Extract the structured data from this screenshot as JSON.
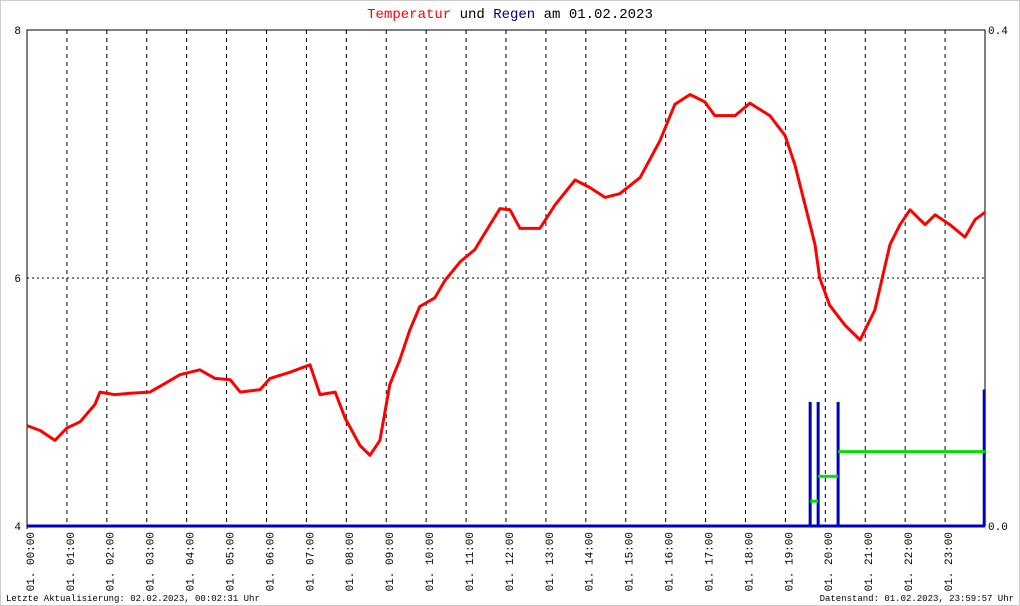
{
  "chart_data": {
    "type": "line",
    "title_parts": [
      "und",
      "am 01.02.2023"
    ],
    "xlim": [
      0,
      24
    ],
    "xticks": [
      {
        "value": 0,
        "label": "01. 00:00"
      },
      {
        "value": 1,
        "label": "01. 01:00"
      },
      {
        "value": 2,
        "label": "01. 02:00"
      },
      {
        "value": 3,
        "label": "01. 03:00"
      },
      {
        "value": 4,
        "label": "01. 04:00"
      },
      {
        "value": 5,
        "label": "01. 05:00"
      },
      {
        "value": 6,
        "label": "01. 06:00"
      },
      {
        "value": 7,
        "label": "01. 07:00"
      },
      {
        "value": 8,
        "label": "01. 08:00"
      },
      {
        "value": 9,
        "label": "01. 09:00"
      },
      {
        "value": 10,
        "label": "01. 10:00"
      },
      {
        "value": 11,
        "label": "01. 11:00"
      },
      {
        "value": 12,
        "label": "01. 12:00"
      },
      {
        "value": 13,
        "label": "01. 13:00"
      },
      {
        "value": 14,
        "label": "01. 14:00"
      },
      {
        "value": 15,
        "label": "01. 15:00"
      },
      {
        "value": 16,
        "label": "01. 16:00"
      },
      {
        "value": 17,
        "label": "01. 17:00"
      },
      {
        "value": 18,
        "label": "01. 18:00"
      },
      {
        "value": 19,
        "label": "01. 19:00"
      },
      {
        "value": 20,
        "label": "01. 20:00"
      },
      {
        "value": 21,
        "label": "01. 21:00"
      },
      {
        "value": 22,
        "label": "01. 22:00"
      },
      {
        "value": 23,
        "label": "01. 23:00"
      }
    ],
    "ylim": [
      4,
      8
    ],
    "yticks": [
      4,
      6,
      8
    ],
    "y2lim": [
      0,
      0.4
    ],
    "y2ticks": [
      {
        "value": 0,
        "label": "0.0"
      },
      {
        "value": 0.4,
        "label": "0.4"
      }
    ],
    "grid": true,
    "series": [
      {
        "name": "Temperatur",
        "color": "#ff0000",
        "x": [
          0.0,
          0.33,
          0.7,
          1.0,
          1.33,
          1.7,
          1.83,
          2.2,
          2.58,
          3.08,
          3.46,
          3.83,
          4.33,
          4.71,
          5.09,
          5.34,
          5.84,
          6.09,
          6.59,
          7.09,
          7.34,
          7.72,
          7.97,
          8.34,
          8.59,
          8.84,
          9.09,
          9.34,
          9.59,
          9.84,
          10.22,
          10.47,
          10.85,
          11.22,
          11.6,
          11.85,
          12.1,
          12.35,
          12.85,
          13.23,
          13.73,
          14.1,
          14.48,
          14.85,
          15.36,
          15.86,
          16.23,
          16.61,
          16.98,
          17.23,
          17.74,
          18.11,
          18.61,
          18.99,
          19.24,
          19.49,
          19.74,
          19.86,
          20.11,
          20.49,
          20.87,
          21.24,
          21.62,
          21.87,
          22.12,
          22.5,
          22.75,
          23.12,
          23.5,
          23.75,
          24.0
        ],
        "values": [
          4.81,
          4.77,
          4.69,
          4.79,
          4.84,
          4.98,
          5.08,
          5.06,
          5.07,
          5.08,
          5.15,
          5.22,
          5.26,
          5.19,
          5.18,
          5.08,
          5.1,
          5.19,
          5.24,
          5.3,
          5.06,
          5.08,
          4.87,
          4.65,
          4.57,
          4.69,
          5.14,
          5.34,
          5.58,
          5.77,
          5.84,
          5.98,
          6.13,
          6.23,
          6.43,
          6.56,
          6.55,
          6.4,
          6.4,
          6.59,
          6.79,
          6.73,
          6.65,
          6.68,
          6.81,
          7.11,
          7.4,
          7.48,
          7.42,
          7.31,
          7.31,
          7.41,
          7.31,
          7.15,
          6.91,
          6.59,
          6.27,
          6.0,
          5.78,
          5.62,
          5.5,
          5.74,
          6.27,
          6.43,
          6.55,
          6.43,
          6.51,
          6.43,
          6.33,
          6.47,
          6.53
        ]
      },
      {
        "name": "Regen",
        "type": "bar",
        "axis": "y2",
        "color": "#0000c0",
        "x": [
          19.62,
          19.82,
          20.32,
          23.98
        ],
        "values": [
          0.1,
          0.1,
          0.1,
          0.11
        ]
      },
      {
        "type": "step",
        "axis": "y2",
        "color": "#00e000",
        "x": [
          19.62,
          19.82,
          20.32
        ],
        "values": [
          0.02,
          0.04,
          0.06
        ]
      }
    ],
    "footer_left": "Letzte Aktualisierung: 02.02.2023, 00:02:31 Uhr",
    "footer_right": "Datenstand: 01.02.2023, 23:59:57 Uhr"
  }
}
